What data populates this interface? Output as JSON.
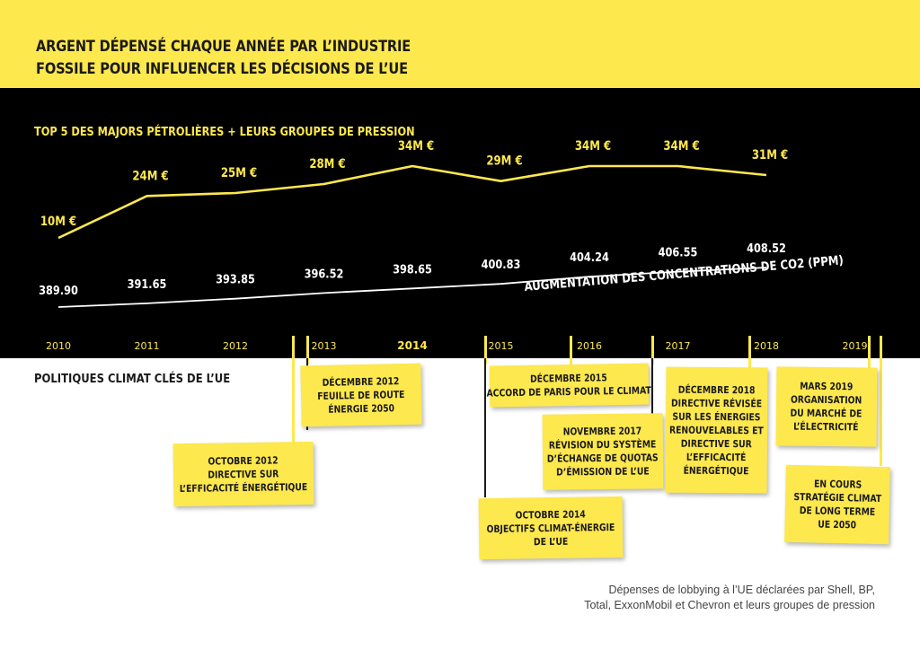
{
  "title_lines": [
    "ARGENT DÉPENSÉ CHAQUE ANNÉE PAR L’INDUSTRIE",
    "FOSSILE POUR INFLUENCER LES DÉCISIONS DE L’UE"
  ],
  "policies_heading": "POLITIQUES CLIMAT CLÉS DE L’UE",
  "colors": {
    "accent_yellow": "#fde84e",
    "panel_black": "#000000",
    "text_dark": "#1a1a1a",
    "co2_line": "#ffffff"
  },
  "chart_data": {
    "type": "line",
    "x": [
      2010,
      2011,
      2012,
      2013,
      2014,
      2015,
      2016,
      2017,
      2018
    ],
    "x_tick_labels": [
      "2010",
      "2011",
      "2012",
      "2013",
      "2014",
      "2015",
      "2016",
      "2017",
      "2018",
      "2019"
    ],
    "grid": false,
    "series": [
      {
        "name": "TOP 5 DES MAJORS PÉTROLIÈRES + LEURS GROUPES DE PRESSION",
        "unit": "M €",
        "values": [
          10,
          24,
          25,
          28,
          34,
          29,
          34,
          34,
          31
        ],
        "labels": [
          "10M €",
          "24M €",
          "25M €",
          "28M €",
          "34M €",
          "29M €",
          "34M €",
          "34M €",
          "31M €"
        ],
        "color": "#fde84e"
      },
      {
        "name": "AUGMENTATION DES CONCENTRATIONS DE CO2 (PPM)",
        "unit": "ppm",
        "values": [
          389.9,
          391.65,
          393.85,
          396.52,
          398.65,
          400.83,
          404.24,
          406.55,
          408.52
        ],
        "labels": [
          "389.90",
          "391.65",
          "393.85",
          "396.52",
          "398.65",
          "400.83",
          "404.24",
          "406.55",
          "408.52"
        ],
        "color": "#ffffff"
      }
    ]
  },
  "policies": [
    {
      "date": "OCTOBRE 2012",
      "lines": [
        "DIRECTIVE SUR",
        "L’EFFICACITÉ ÉNERGÉTIQUE"
      ]
    },
    {
      "date": "DÉCEMBRE 2012",
      "lines": [
        "FEUILLE DE ROUTE",
        "ÉNERGIE 2050"
      ]
    },
    {
      "date": "OCTOBRE 2014",
      "lines": [
        "OBJECTIFS CLIMAT-ÉNERGIE",
        "DE L’UE"
      ]
    },
    {
      "date": "DÉCEMBRE 2015",
      "lines": [
        "ACCORD DE PARIS POUR LE CLIMAT"
      ]
    },
    {
      "date": "NOVEMBRE 2017",
      "lines": [
        "RÉVISION DU SYSTÈME",
        "D’ÉCHANGE DE QUOTAS",
        "D’ÉMISSION DE L’UE"
      ]
    },
    {
      "date": "DÉCEMBRE 2018",
      "lines": [
        "DIRECTIVE  RÉVISÉE",
        "SUR LES ÉNERGIES",
        "RENOUVELABLES ET",
        "DIRECTIVE SUR",
        "L’EFFICACITÉ",
        "ÉNERGÉTIQUE"
      ]
    },
    {
      "date": "MARS 2019",
      "lines": [
        "ORGANISATION",
        "DU MARCHÉ DE",
        "L’ÉLECTRICITÉ"
      ]
    },
    {
      "date": "EN COURS",
      "lines": [
        "STRATÉGIE CLIMAT",
        "DE LONG TERME",
        "UE 2050"
      ]
    }
  ],
  "footnote_lines": [
    "Dépenses de lobbying à l’UE déclarées par  Shell, BP,",
    "Total, ExxonMobil et Chevron et leurs groupes de pression"
  ]
}
